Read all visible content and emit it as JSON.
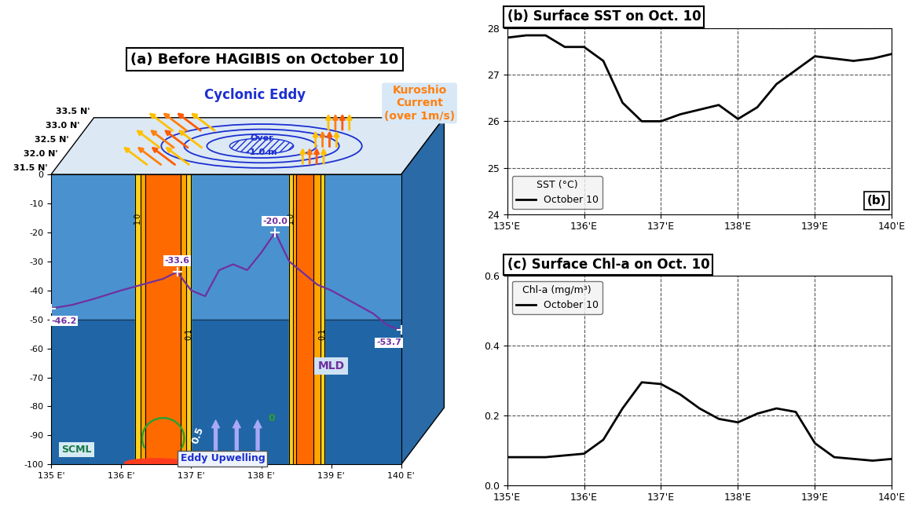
{
  "chart_data": [
    {
      "type": "line",
      "title": "(a) Before HAGIBIS on October 10",
      "series_label": "MLD",
      "color": "#7030a0",
      "x": [
        135.0,
        135.3,
        135.6,
        136.0,
        136.3,
        136.6,
        136.8,
        137.0,
        137.2,
        137.4,
        137.6,
        137.8,
        138.0,
        138.2,
        138.4,
        138.6,
        138.8,
        139.0,
        139.3,
        139.6,
        139.8,
        140.0
      ],
      "values": [
        -46.2,
        -45,
        -43,
        -40,
        -38,
        -36,
        -33.6,
        -40,
        -42,
        -33,
        -31,
        -33,
        -27,
        -20.0,
        -30,
        -34,
        -38,
        -40,
        -44,
        -48,
        -52,
        -53.7
      ],
      "point_labels": [
        {
          "x": 135.0,
          "value": -46.2,
          "label": "-46.2"
        },
        {
          "x": 136.8,
          "value": -33.6,
          "label": "-33.6"
        },
        {
          "x": 138.2,
          "value": -20.0,
          "label": "-20.0"
        },
        {
          "x": 140.0,
          "value": -53.7,
          "label": "-53.7"
        }
      ],
      "xlim": [
        135,
        140
      ],
      "xticks": [
        {
          "value": 135,
          "label": "135 E'"
        },
        {
          "value": 136,
          "label": "136 E'"
        },
        {
          "value": 137,
          "label": "137 E'"
        },
        {
          "value": 138,
          "label": "138 E'"
        },
        {
          "value": 139,
          "label": "139 E'"
        },
        {
          "value": 140,
          "label": "140 E'"
        }
      ],
      "ylim": [
        -100,
        0
      ],
      "yticks": [
        0,
        -10,
        -20,
        -30,
        -40,
        -50,
        -60,
        -70,
        -80,
        -90,
        -100
      ],
      "latitudes": [
        "31.5 N'",
        "32.0 N'",
        "32.5 N'",
        "33.0 N'",
        "33.5 N'"
      ],
      "eddy_label": "Cyclonic Eddy",
      "eddy_core": [
        "Over",
        "-1.0 m"
      ],
      "kuroshio_label": [
        "Kuroshio",
        "Current",
        "(over 1m/s)"
      ],
      "kuroshio_bands": [
        {
          "outer": [
            136.2,
            137.0
          ],
          "inner": [
            136.35,
            136.85
          ]
        },
        {
          "outer": [
            138.4,
            138.9
          ],
          "inner": [
            138.5,
            138.75
          ]
        }
      ],
      "contour_labels": [
        "1.0",
        "0.1"
      ],
      "upwelling_contours": [
        "0.5",
        "0"
      ],
      "scml_label": "SCML",
      "upwelling_label": "Eddy Upwelling"
    },
    {
      "type": "line",
      "title": "(b) Surface SST on Oct. 10",
      "corner_label": "(b)",
      "x": [
        135.0,
        135.25,
        135.5,
        135.75,
        136.0,
        136.25,
        136.5,
        136.75,
        137.0,
        137.25,
        137.5,
        137.75,
        138.0,
        138.25,
        138.5,
        138.75,
        139.0,
        139.25,
        139.5,
        139.75,
        140.0
      ],
      "series": [
        {
          "name": "October 10",
          "color": "#000000",
          "values": [
            27.8,
            27.85,
            27.85,
            27.6,
            27.6,
            27.3,
            26.4,
            26.0,
            26.0,
            26.15,
            26.25,
            26.35,
            26.05,
            26.3,
            26.8,
            27.1,
            27.4,
            27.35,
            27.3,
            27.35,
            27.45
          ]
        }
      ],
      "legend_title": "SST (°C)",
      "legend": "lower left",
      "xlim": [
        135,
        140
      ],
      "xticks": [
        {
          "value": 135,
          "label": "135'E"
        },
        {
          "value": 136,
          "label": "136'E"
        },
        {
          "value": 137,
          "label": "137'E"
        },
        {
          "value": 138,
          "label": "138'E"
        },
        {
          "value": 139,
          "label": "139'E"
        },
        {
          "value": 140,
          "label": "140'E"
        }
      ],
      "ylim": [
        24,
        28
      ],
      "yticks": [
        24,
        25,
        26,
        27,
        28
      ],
      "grid": true
    },
    {
      "type": "line",
      "title": "(c) Surface Chl-a on Oct. 10",
      "x": [
        135.0,
        135.5,
        135.75,
        136.0,
        136.25,
        136.5,
        136.75,
        137.0,
        137.25,
        137.5,
        137.75,
        138.0,
        138.25,
        138.5,
        138.75,
        139.0,
        139.25,
        139.5,
        139.75,
        140.0
      ],
      "series": [
        {
          "name": "October 10",
          "color": "#000000",
          "values": [
            0.08,
            0.08,
            0.085,
            0.09,
            0.13,
            0.22,
            0.295,
            0.29,
            0.26,
            0.22,
            0.19,
            0.18,
            0.205,
            0.22,
            0.21,
            0.12,
            0.08,
            0.075,
            0.07,
            0.075
          ]
        }
      ],
      "legend_title": "Chl-a (mg/m³)",
      "legend": "upper left",
      "xlim": [
        135,
        140
      ],
      "xticks": [
        {
          "value": 135,
          "label": "135'E"
        },
        {
          "value": 136,
          "label": "136'E"
        },
        {
          "value": 137,
          "label": "137'E"
        },
        {
          "value": 138,
          "label": "138'E"
        },
        {
          "value": 139,
          "label": "139'E"
        },
        {
          "value": 140,
          "label": "140'E"
        }
      ],
      "ylim": [
        0,
        0.6
      ],
      "yticks": [
        {
          "value": 0,
          "label": "0.0"
        },
        0.2,
        0.4,
        0.6
      ],
      "grid": true
    }
  ]
}
